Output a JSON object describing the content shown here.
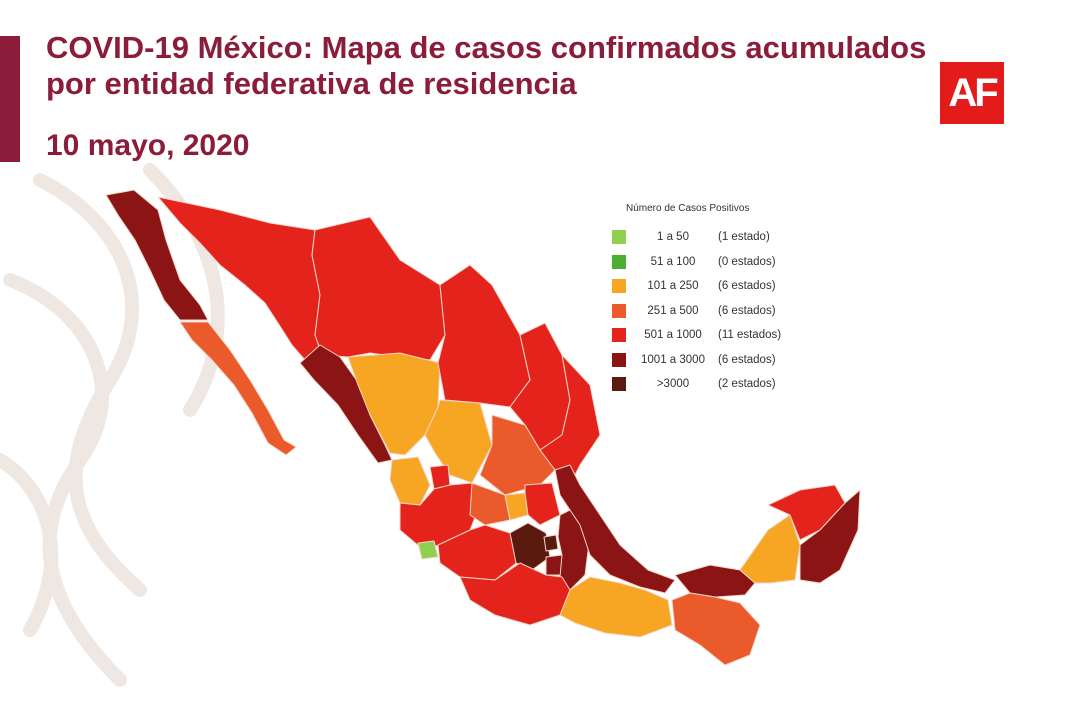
{
  "header": {
    "title_line1": "COVID-19 México: Mapa de casos confirmados acumulados",
    "title_line2": "por entidad federativa de residencia",
    "date": "10 mayo, 2020",
    "logo_text": "AF"
  },
  "colors": {
    "brand": "#8b1d3a",
    "logo_bg": "#e31b1b",
    "c1_50": "#8fd14f",
    "c51_100": "#4caf32",
    "c101_250": "#f6a623",
    "c251_500": "#ea5a2a",
    "c501_1000": "#e3231c",
    "c1001_3000": "#8b1414",
    "c3000": "#5a1a0e"
  },
  "legend": {
    "title": "Número de Casos Positivos",
    "items": [
      {
        "range": "1 a 50",
        "count": "(1 estado)",
        "color": "#8fd14f"
      },
      {
        "range": "51 a 100",
        "count": "(0 estados)",
        "color": "#4caf32"
      },
      {
        "range": "101 a 250",
        "count": "(6 estados)",
        "color": "#f6a623"
      },
      {
        "range": "251 a 500",
        "count": "(6 estados)",
        "color": "#ea5a2a"
      },
      {
        "range": "501 a 1000",
        "count": "(11 estados)",
        "color": "#e3231c"
      },
      {
        "range": "1001 a 3000",
        "count": "(6 estados)",
        "color": "#8b1414"
      },
      {
        "range": ">3000",
        "count": "(2 estados)",
        "color": "#5a1a0e"
      }
    ]
  }
}
